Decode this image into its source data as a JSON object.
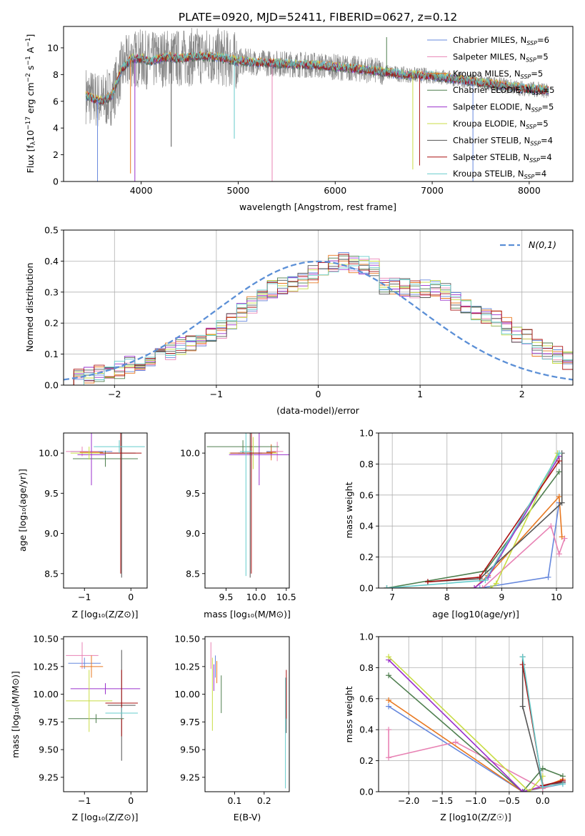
{
  "figure": {
    "title": "PLATE=0920, MJD=52411, FIBERID=0627, z=0.12"
  },
  "models": [
    {
      "name": "Chabrier MILES",
      "nssp": "6",
      "color": "#6688dd"
    },
    {
      "name": "Salpeter MILES",
      "nssp": "5",
      "color": "#e882b4"
    },
    {
      "name": "Kroupa MILES",
      "nssp": "5",
      "color": "#e87820"
    },
    {
      "name": "Chabrier ELODIE",
      "nssp": "5",
      "color": "#4f7f4f"
    },
    {
      "name": "Salpeter ELODIE",
      "nssp": "5",
      "color": "#9a30cc"
    },
    {
      "name": "Kroupa ELODIE",
      "nssp": "5",
      "color": "#c8dc44"
    },
    {
      "name": "Chabrier STELIB",
      "nssp": "4",
      "color": "#555555"
    },
    {
      "name": "Salpeter STELIB",
      "nssp": "4",
      "color": "#aa1111"
    },
    {
      "name": "Kroupa STELIB",
      "nssp": "4",
      "color": "#66cccc"
    }
  ],
  "chart_data": [
    {
      "id": "spectrum",
      "type": "line",
      "xlabel": "wavelength [Angstrom, rest frame]",
      "ylabel": "Flux [f_λ10^-17 erg cm^-2 s^-1 A^-1]",
      "xlim": [
        3200,
        8450
      ],
      "ylim": [
        0,
        11.6
      ],
      "xticks": [
        4000,
        5000,
        6000,
        7000,
        8000
      ],
      "yticks": [
        0,
        2,
        4,
        6,
        8,
        10
      ],
      "data_color": "#888888",
      "legend": "top-right",
      "continuum": {
        "x": [
          3400,
          3500,
          3600,
          3700,
          3800,
          3900,
          4000,
          4100,
          4200,
          4300,
          4400,
          4600,
          4800,
          5000,
          5200,
          5500,
          5800,
          6100,
          6400,
          6700,
          7000,
          7300,
          7600,
          7900,
          8200
        ],
        "y": [
          6.6,
          6.2,
          6.0,
          6.4,
          8.4,
          9.2,
          9.2,
          9.0,
          9.2,
          9.3,
          9.2,
          9.4,
          9.3,
          9.0,
          8.9,
          8.8,
          8.7,
          8.5,
          8.3,
          8.0,
          7.9,
          7.6,
          7.3,
          7.0,
          6.8
        ]
      },
      "spikes": {
        "x": [
          3550,
          3890,
          3935,
          4310,
          4960,
          5350,
          6530,
          6800,
          6870,
          7420
        ],
        "y": [
          0,
          0.6,
          0,
          2.6,
          3.2,
          0,
          10.8,
          0.9,
          1.2,
          0
        ]
      }
    },
    {
      "id": "residual-distribution",
      "type": "step",
      "xlabel": "(data-model)/error",
      "ylabel": "Normed distribution",
      "xlim": [
        -2.5,
        2.5
      ],
      "ylim": [
        0,
        0.5
      ],
      "xticks": [
        -2,
        -1,
        0,
        1,
        2
      ],
      "yticks": [
        0,
        0.1,
        0.2,
        0.3,
        0.4,
        0.5
      ],
      "grid": true,
      "legend": "top-right",
      "reference": {
        "label": "N(0,1)",
        "mu": 0,
        "sigma": 1,
        "color": "#5b8fd6"
      },
      "bin_edges_start": -2.5,
      "bin_width": 0.1,
      "base_profile": [
        0.02,
        0.025,
        0.03,
        0.04,
        0.045,
        0.05,
        0.065,
        0.075,
        0.09,
        0.1,
        0.11,
        0.125,
        0.14,
        0.15,
        0.165,
        0.18,
        0.21,
        0.235,
        0.26,
        0.29,
        0.31,
        0.32,
        0.33,
        0.34,
        0.36,
        0.37,
        0.39,
        0.4,
        0.39,
        0.385,
        0.38,
        0.32,
        0.32,
        0.315,
        0.31,
        0.31,
        0.31,
        0.3,
        0.27,
        0.26,
        0.24,
        0.22,
        0.21,
        0.19,
        0.16,
        0.15,
        0.12,
        0.11,
        0.095,
        0.08,
        0.075,
        0.065,
        0.05,
        0.045,
        0.04,
        0.035,
        0.03,
        0.025,
        0.02,
        0.015,
        0.015
      ]
    },
    {
      "id": "age-vs-Z",
      "type": "errorbar",
      "xlabel": "Z [log10(Z/Z☉)]",
      "ylabel": "age [log10(age/yr)]",
      "xlim": [
        -1.45,
        0.35
      ],
      "ylim": [
        8.32,
        10.25
      ],
      "xticks": [
        -1,
        0
      ],
      "yticks": [
        8.5,
        9.0,
        9.5,
        10.0
      ],
      "points": [
        {
          "model": 0,
          "x": -0.85,
          "y": 10.02,
          "xerr": 0.45,
          "yerr": 0.08
        },
        {
          "model": 1,
          "x": -1.05,
          "y": 10.02,
          "xerr": 0.35,
          "yerr": 0.06
        },
        {
          "model": 2,
          "x": -0.85,
          "y": 10.01,
          "xerr": 0.25,
          "yerr": 0.14
        },
        {
          "model": 3,
          "x": -0.55,
          "y": 9.93,
          "xerr": 0.7,
          "yerr": 0.1
        },
        {
          "model": 4,
          "x": -0.85,
          "y": 9.98,
          "xerr": 0.3,
          "yerr": 0.38
        },
        {
          "model": 5,
          "x": -0.9,
          "y": 10.0,
          "xerr": 0.4,
          "yerr": 0.08
        },
        {
          "model": 6,
          "x": -0.2,
          "y": 10.0,
          "xerr": 0.3,
          "yerr": 1.55
        },
        {
          "model": 7,
          "x": -0.22,
          "y": 10.0,
          "xerr": 0.45,
          "yerr": 1.5
        },
        {
          "model": 8,
          "x": -0.25,
          "y": 10.08,
          "xerr": 0.55,
          "yerr": 0.08
        }
      ]
    },
    {
      "id": "age-vs-mass",
      "type": "errorbar",
      "xlabel": "mass [log10(M/M☉)]",
      "ylabel": "",
      "xlim": [
        9.15,
        10.55
      ],
      "ylim": [
        8.32,
        10.25
      ],
      "xticks": [
        9.5,
        10.0,
        10.5
      ],
      "yticks": [
        8.5,
        9.0,
        9.5,
        10.0
      ],
      "points": [
        {
          "model": 0,
          "x": 10.25,
          "y": 10.02,
          "xerr": 0.08,
          "yerr": 0.08
        },
        {
          "model": 1,
          "x": 10.35,
          "y": 10.02,
          "xerr": 0.1,
          "yerr": 0.12
        },
        {
          "model": 2,
          "x": 10.25,
          "y": 10.01,
          "xerr": 0.08,
          "yerr": 0.1
        },
        {
          "model": 3,
          "x": 9.78,
          "y": 10.08,
          "xerr": 0.6,
          "yerr": 0.08
        },
        {
          "model": 4,
          "x": 10.05,
          "y": 9.98,
          "xerr": 0.5,
          "yerr": 0.38
        },
        {
          "model": 5,
          "x": 9.95,
          "y": 10.0,
          "xerr": 0.4,
          "yerr": 0.2
        },
        {
          "model": 6,
          "x": 9.9,
          "y": 10.0,
          "xerr": 0.2,
          "yerr": 1.55
        },
        {
          "model": 7,
          "x": 9.92,
          "y": 10.0,
          "xerr": 0.35,
          "yerr": 1.5
        },
        {
          "model": 8,
          "x": 9.83,
          "y": 10.02,
          "xerr": 0.1,
          "yerr": 1.55
        }
      ]
    },
    {
      "id": "massweight-vs-age",
      "type": "line",
      "xlabel": "age [log10(age/yr)]",
      "ylabel": "mass weight",
      "xlim": [
        6.75,
        10.3
      ],
      "ylim": [
        0,
        1.0
      ],
      "xticks": [
        7,
        8,
        9,
        10
      ],
      "yticks": [
        0.0,
        0.2,
        0.4,
        0.6,
        0.8,
        1.0
      ],
      "grid": true,
      "series": [
        {
          "model": 0,
          "x": [
            6.9,
            8.6,
            9.85,
            10.05
          ],
          "y": [
            0.0,
            0.0,
            0.07,
            0.55
          ]
        },
        {
          "model": 1,
          "x": [
            8.65,
            9.9,
            10.05,
            10.15
          ],
          "y": [
            0.0,
            0.4,
            0.22,
            0.32
          ]
        },
        {
          "model": 2,
          "x": [
            6.9,
            8.5,
            8.75,
            10.05,
            10.1
          ],
          "y": [
            0.0,
            0.0,
            0.08,
            0.59,
            0.33
          ]
        },
        {
          "model": 3,
          "x": [
            6.9,
            8.7,
            10.05
          ],
          "y": [
            0.0,
            0.11,
            0.75
          ]
        },
        {
          "model": 4,
          "x": [
            8.5,
            8.75,
            10.05
          ],
          "y": [
            0.0,
            0.07,
            0.85
          ]
        },
        {
          "model": 5,
          "x": [
            8.8,
            8.9,
            10.02
          ],
          "y": [
            0.0,
            0.03,
            0.87
          ]
        },
        {
          "model": 6,
          "x": [
            7.65,
            8.6,
            10.1,
            10.1
          ],
          "y": [
            0.04,
            0.06,
            0.55,
            0.87
          ]
        },
        {
          "model": 7,
          "x": [
            7.65,
            8.6,
            10.05
          ],
          "y": [
            0.04,
            0.07,
            0.82
          ]
        },
        {
          "model": 8,
          "x": [
            6.9,
            8.7,
            10.05
          ],
          "y": [
            0.0,
            0.05,
            0.87
          ]
        }
      ]
    },
    {
      "id": "mass-vs-Z",
      "type": "errorbar",
      "xlabel": "Z [log10(Z/Z☉)]",
      "ylabel": "mass [log10(M/M☉)]",
      "xlim": [
        -1.45,
        0.35
      ],
      "ylim": [
        9.12,
        10.52
      ],
      "xticks": [
        -1,
        0
      ],
      "yticks": [
        9.25,
        9.5,
        9.75,
        10.0,
        10.25,
        10.5
      ],
      "points": [
        {
          "model": 0,
          "x": -1.0,
          "y": 10.28,
          "xerr": 0.35,
          "yerr": 0.05
        },
        {
          "model": 1,
          "x": -1.05,
          "y": 10.35,
          "xerr": 0.35,
          "yerr": 0.12
        },
        {
          "model": 2,
          "x": -0.85,
          "y": 10.25,
          "xerr": 0.25,
          "yerr": 0.1
        },
        {
          "model": 3,
          "x": -0.75,
          "y": 9.78,
          "xerr": 0.6,
          "yerr": 0.04
        },
        {
          "model": 4,
          "x": -0.55,
          "y": 10.05,
          "xerr": 0.75,
          "yerr": 0.05
        },
        {
          "model": 5,
          "x": -0.9,
          "y": 9.94,
          "xerr": 0.5,
          "yerr": 0.28
        },
        {
          "model": 6,
          "x": -0.2,
          "y": 9.9,
          "xerr": 0.3,
          "yerr": 0.5
        },
        {
          "model": 7,
          "x": -0.2,
          "y": 9.92,
          "xerr": 0.35,
          "yerr": 0.3
        },
        {
          "model": 8,
          "x": -0.2,
          "y": 9.83,
          "xerr": 0.35,
          "yerr": 0.05
        }
      ]
    },
    {
      "id": "mass-vs-ebv",
      "type": "errorbar",
      "xlabel": "E(B-V)",
      "ylabel": "",
      "xlim": [
        0.0,
        0.285
      ],
      "ylim": [
        9.12,
        10.52
      ],
      "xticks": [
        0.1,
        0.2
      ],
      "yticks": [
        9.25,
        9.5,
        9.75,
        10.0,
        10.25,
        10.5
      ],
      "points": [
        {
          "model": 0,
          "x": 0.035,
          "y": 10.25,
          "xerr": 0.0,
          "yerr": 0.1
        },
        {
          "model": 1,
          "x": 0.02,
          "y": 10.35,
          "xerr": 0.0,
          "yerr": 0.12
        },
        {
          "model": 2,
          "x": 0.04,
          "y": 10.2,
          "xerr": 0.0,
          "yerr": 0.1
        },
        {
          "model": 3,
          "x": 0.055,
          "y": 10.0,
          "xerr": 0.0,
          "yerr": 0.17
        },
        {
          "model": 4,
          "x": 0.03,
          "y": 10.15,
          "xerr": 0.0,
          "yerr": 0.12
        },
        {
          "model": 5,
          "x": 0.025,
          "y": 10.0,
          "xerr": 0.0,
          "yerr": 0.33
        },
        {
          "model": 6,
          "x": 0.275,
          "y": 9.9,
          "xerr": 0.0,
          "yerr": 0.25
        },
        {
          "model": 7,
          "x": 0.275,
          "y": 10.0,
          "xerr": 0.0,
          "yerr": 0.22
        },
        {
          "model": 8,
          "x": 0.272,
          "y": 9.65,
          "xerr": 0.0,
          "yerr": 0.5
        }
      ]
    },
    {
      "id": "massweight-vs-Z",
      "type": "line",
      "xlabel": "Z [log10(Z/Z☉)]",
      "ylabel": "mass weight",
      "xlim": [
        -2.45,
        0.45
      ],
      "ylim": [
        0,
        1.0
      ],
      "xticks": [
        -2.0,
        -1.5,
        -1.0,
        -0.5,
        0.0
      ],
      "yticks": [
        0.0,
        0.2,
        0.4,
        0.6,
        0.8,
        1.0
      ],
      "grid": true,
      "series": [
        {
          "model": 0,
          "x": [
            -2.3,
            -0.3,
            0.3
          ],
          "y": [
            0.55,
            0.0,
            0.05
          ]
        },
        {
          "model": 1,
          "x": [
            -2.3,
            -2.3,
            -1.3,
            0.0,
            0.3
          ],
          "y": [
            0.4,
            0.22,
            0.32,
            0.02,
            0.06
          ]
        },
        {
          "model": 2,
          "x": [
            -2.3,
            -0.3,
            0.0,
            0.3
          ],
          "y": [
            0.59,
            0.0,
            0.03,
            0.08
          ]
        },
        {
          "model": 3,
          "x": [
            -2.3,
            -0.3,
            0.0,
            0.3
          ],
          "y": [
            0.75,
            0.0,
            0.15,
            0.1
          ]
        },
        {
          "model": 4,
          "x": [
            -2.3,
            -0.3,
            0.3
          ],
          "y": [
            0.85,
            0.0,
            0.07
          ]
        },
        {
          "model": 5,
          "x": [
            -2.3,
            -0.2,
            0.0
          ],
          "y": [
            0.87,
            0.0,
            0.1
          ]
        },
        {
          "model": 6,
          "x": [
            -0.3,
            -0.3,
            0.0,
            0.3
          ],
          "y": [
            0.87,
            0.55,
            0.04,
            0.06
          ]
        },
        {
          "model": 7,
          "x": [
            -0.3,
            0.0,
            0.3
          ],
          "y": [
            0.82,
            0.04,
            0.07
          ]
        },
        {
          "model": 8,
          "x": [
            -0.3,
            0.0,
            0.3
          ],
          "y": [
            0.87,
            0.03,
            0.05
          ]
        }
      ]
    }
  ]
}
